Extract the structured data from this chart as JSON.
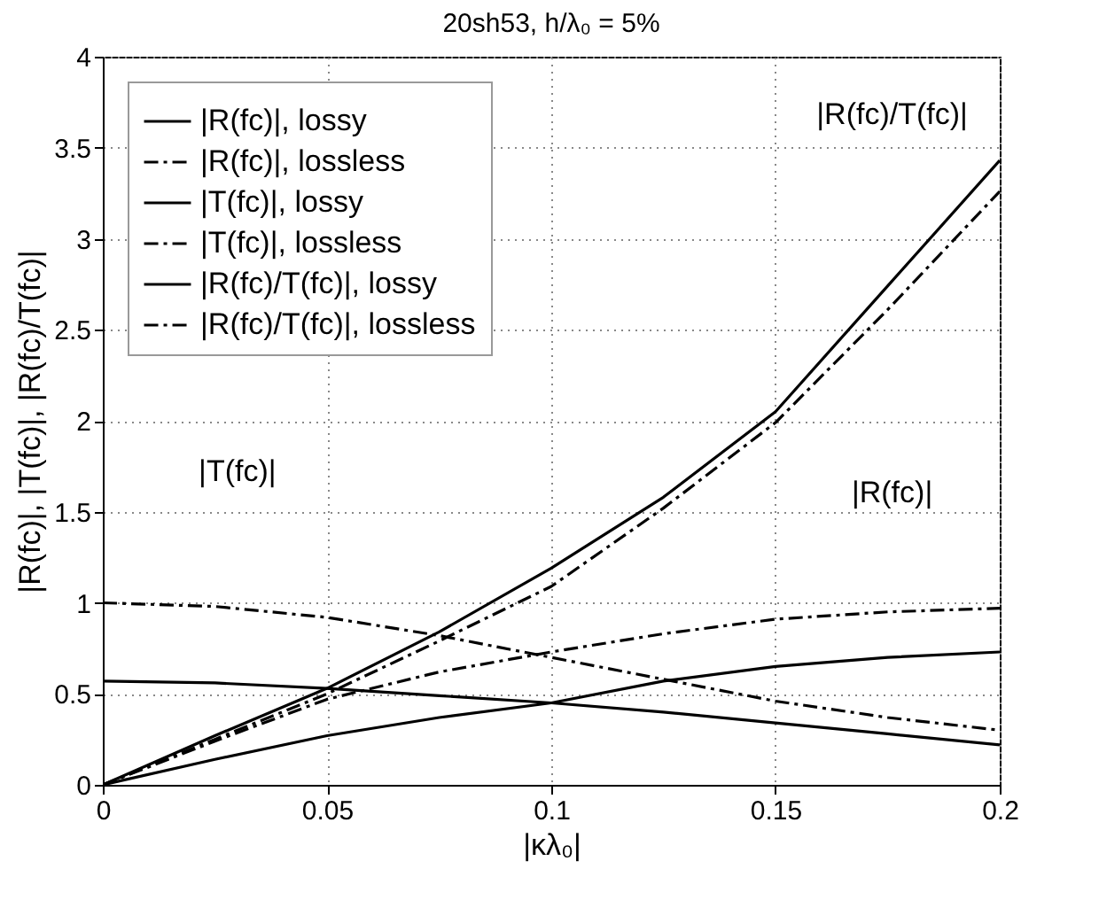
{
  "chart_data": {
    "type": "line",
    "title": "20sh53, h/λ₀ = 5%",
    "xlabel": "|κλ₀|",
    "ylabel": "|R(fc)|, |T(fc)|, |R(fc)/T(fc)|",
    "x": [
      0,
      0.025,
      0.05,
      0.075,
      0.1,
      0.125,
      0.15,
      0.175,
      0.2
    ],
    "series": [
      {
        "name": "|R(fc)|, lossy",
        "color": "#000000",
        "line_style": "solid",
        "values": [
          0,
          0.14,
          0.27,
          0.37,
          0.45,
          0.57,
          0.65,
          0.7,
          0.73
        ]
      },
      {
        "name": "|R(fc)|, lossless",
        "color": "#000000",
        "line_style": "dashed",
        "values": [
          0,
          0.24,
          0.47,
          0.62,
          0.73,
          0.83,
          0.91,
          0.95,
          0.97
        ]
      },
      {
        "name": "|T(fc)|, lossy",
        "color": "#000000",
        "line_style": "solid",
        "values": [
          0.57,
          0.56,
          0.53,
          0.49,
          0.45,
          0.4,
          0.34,
          0.28,
          0.22
        ]
      },
      {
        "name": "|T(fc)|, lossless",
        "color": "#000000",
        "line_style": "dashed",
        "values": [
          1.0,
          0.98,
          0.92,
          0.82,
          0.7,
          0.58,
          0.46,
          0.37,
          0.3
        ]
      },
      {
        "name": "|R(fc)/T(fc)|, lossy",
        "color": "#000000",
        "line_style": "solid",
        "values": [
          0,
          0.27,
          0.53,
          0.84,
          1.19,
          1.58,
          2.05,
          2.74,
          3.43
        ]
      },
      {
        "name": "|R(fc)/T(fc)|, lossless",
        "color": "#000000",
        "line_style": "dashed",
        "values": [
          0,
          0.25,
          0.5,
          0.79,
          1.09,
          1.52,
          1.99,
          2.61,
          3.26
        ]
      }
    ],
    "xlim": [
      0,
      0.2
    ],
    "xticks": [
      0,
      0.05,
      0.1,
      0.15,
      0.2
    ],
    "ylim": [
      0,
      4
    ],
    "yticks": [
      0,
      0.5,
      1,
      1.5,
      2,
      2.5,
      3,
      3.5,
      4
    ],
    "grid": true,
    "legend": "top left",
    "annotations": [
      "|R(fc)/T(fc)|",
      "|R(fc)|",
      "|T(fc)|"
    ]
  }
}
